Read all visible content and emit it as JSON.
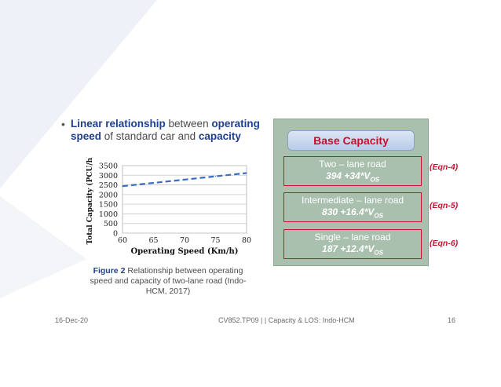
{
  "bullet": {
    "part1": "Linear relationship",
    "part2": " between ",
    "part3": "operating speed",
    "part4": " of standard car and ",
    "part5": "capacity"
  },
  "chart_data": {
    "type": "line",
    "xlabel": "Operating Speed (Km/h)",
    "ylabel": "Total Capacity (PCU/h)",
    "xlim": [
      60,
      80
    ],
    "ylim": [
      0,
      3500
    ],
    "x_ticks": [
      "60",
      "65",
      "70",
      "75",
      "80"
    ],
    "y_ticks": [
      "0",
      "500",
      "1000",
      "1500",
      "2000",
      "2500",
      "3000",
      "3500"
    ],
    "grid": true,
    "series": [
      {
        "x": [
          60,
          65,
          70,
          75,
          80
        ],
        "values": [
          2435,
          2605,
          2775,
          2945,
          3115
        ]
      }
    ]
  },
  "caption": {
    "label": "Figure 2",
    "text": " Relationship between operating speed and capacity of two-lane road (Indo-HCM, 2017)"
  },
  "panel": {
    "title": "Base Capacity",
    "rows": [
      {
        "name": "Two – lane road",
        "formula": "394 +34*V",
        "sub": "OS",
        "eqn": "(Eqn-4)"
      },
      {
        "name": "Intermediate – lane road",
        "formula": "830 +16.4*V",
        "sub": "OS",
        "eqn": "(Eqn-5)"
      },
      {
        "name": "Single – lane road",
        "formula": "187 +12.4*V",
        "sub": "OS",
        "eqn": "(Eqn-6)"
      }
    ]
  },
  "footer": {
    "date": "16-Dec-20",
    "center": "CV852.TP09 |  |  Capacity & LOS: Indo-HCM",
    "page": "16"
  },
  "colors": {
    "accent_blue": "#1f3f8c",
    "accent_red": "#c8102e",
    "panel_green": "#a9c0ae"
  }
}
